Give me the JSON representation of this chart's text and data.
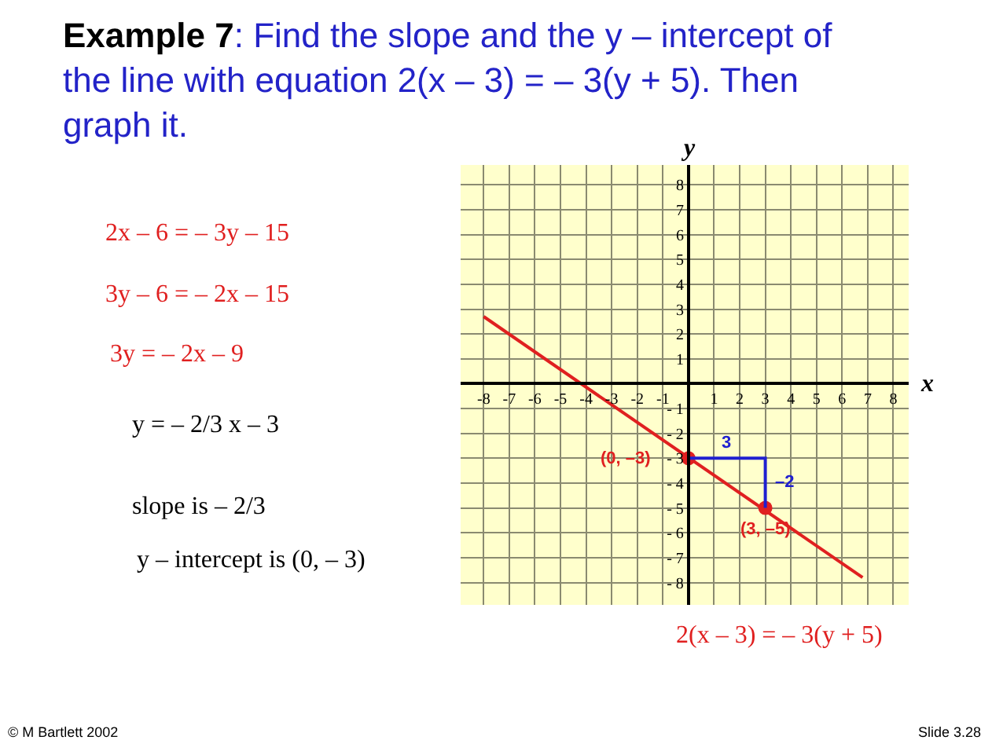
{
  "chart_data": {
    "type": "line",
    "title": "Example 7: Find the slope and the y – intercept of the line with equation 2(x – 3) = – 3(y + 5). Then graph it.",
    "xlabel": "x",
    "ylabel": "y",
    "xlim": [
      -8.9,
      8.6
    ],
    "ylim": [
      -8.9,
      8.8
    ],
    "xticks": [
      -8,
      -7,
      -6,
      -5,
      -4,
      -3,
      -2,
      -1,
      1,
      2,
      3,
      4,
      5,
      6,
      7,
      8
    ],
    "yticks": [
      {
        "value": -8,
        "label": "- 8"
      },
      {
        "value": -7,
        "label": "- 7"
      },
      {
        "value": -6,
        "label": "- 6"
      },
      {
        "value": -5,
        "label": "- 5"
      },
      {
        "value": -4,
        "label": "- 4"
      },
      {
        "value": -3,
        "label": "- 3"
      },
      {
        "value": -2,
        "label": "- 2"
      },
      {
        "value": -1,
        "label": "- 1"
      },
      1,
      2,
      3,
      4,
      5,
      6,
      7,
      8
    ],
    "grid": true,
    "series": [
      {
        "color": "#e02020",
        "x": [
          -8,
          6.8
        ],
        "values": [
          2.7,
          -7.8
        ]
      },
      {
        "type": "scatter",
        "color": "#e02020",
        "marker": "circle",
        "x": [
          0,
          3
        ],
        "values": [
          -3,
          -5
        ]
      },
      {
        "color": "#2020d0",
        "x": [
          0,
          3,
          3
        ],
        "values": [
          -3,
          -3,
          -5
        ]
      }
    ],
    "annotations": [
      "2x – 6 = – 3y – 15",
      "3y – 6 = – 2x – 15",
      "3y = – 2x – 9",
      "y = – 2/3 x – 3",
      "slope is – 2/3",
      "y – intercept is (0, – 3)",
      {
        "text": "(0, –3)",
        "x": 0,
        "y": -3
      },
      {
        "text": "(3, –5)",
        "x": 3,
        "y": -5
      },
      {
        "text": "3",
        "x": 1.5,
        "y": -3
      },
      {
        "text": "–2",
        "x": 3,
        "y": -4
      },
      "2(x – 3) = – 3(y + 5)",
      "© M Bartlett 2002",
      "Slide 3.28"
    ]
  }
}
